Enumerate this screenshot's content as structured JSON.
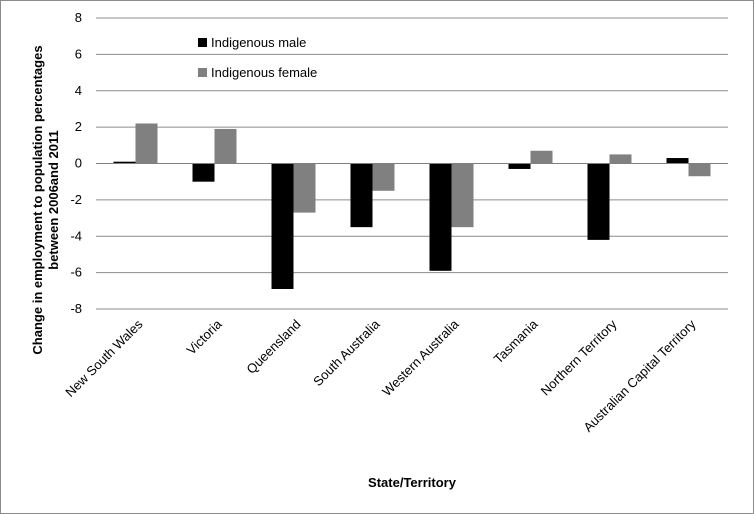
{
  "chart_data": {
    "type": "bar",
    "xlabel": "State/Territory",
    "ylabel_lines": [
      "Change in employment to population percentages",
      "between 2006and  2011"
    ],
    "ylim": [
      -8,
      8
    ],
    "yticks": [
      8,
      6,
      4,
      2,
      0,
      -2,
      -4,
      -6,
      -8
    ],
    "grid": true,
    "legend_placement": "top-left",
    "categories": [
      "New South Wales",
      "Victoria",
      "Queensland",
      "South Australia",
      "Western Australia",
      "Tasmania",
      "Northern Territory",
      "Australian Capital Territory"
    ],
    "series": [
      {
        "name": "Indigenous male",
        "color": "#000000",
        "values": [
          0.1,
          -1.0,
          -6.9,
          -3.5,
          -5.9,
          -0.3,
          -4.2,
          0.3
        ]
      },
      {
        "name": "Indigenous female",
        "color": "#808080",
        "values": [
          2.2,
          1.9,
          -2.7,
          -1.5,
          -3.5,
          0.7,
          0.5,
          -0.7
        ]
      }
    ]
  }
}
